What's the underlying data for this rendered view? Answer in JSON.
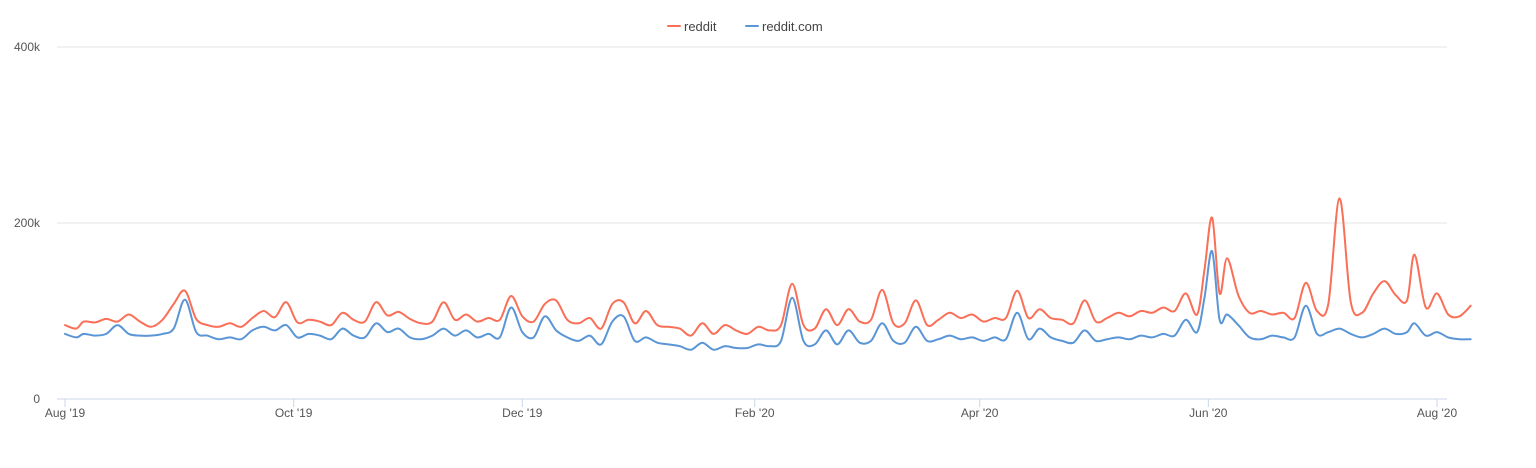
{
  "chart_data": {
    "type": "line",
    "title": "",
    "xlabel": "",
    "ylabel": "",
    "ylim": [
      0,
      400000
    ],
    "y_ticks": [
      {
        "value": 0,
        "label": "0"
      },
      {
        "value": 200000,
        "label": "200k"
      },
      {
        "value": 400000,
        "label": "400k"
      }
    ],
    "x_range": [
      "2019-08-01",
      "2020-08-01"
    ],
    "x_ticks": [
      {
        "date": "2019-08-01",
        "label": "Aug '19"
      },
      {
        "date": "2019-10-01",
        "label": "Oct '19"
      },
      {
        "date": "2019-12-01",
        "label": "Dec '19"
      },
      {
        "date": "2020-02-01",
        "label": "Feb '20"
      },
      {
        "date": "2020-04-01",
        "label": "Apr '20"
      },
      {
        "date": "2020-06-01",
        "label": "Jun '20"
      },
      {
        "date": "2020-08-01",
        "label": "Aug '20"
      }
    ],
    "grid": "horizontal only",
    "legend_position": "top-center",
    "series": [
      {
        "name": "reddit",
        "color": "#fa6f57",
        "points": [
          [
            "2019-08-01",
            84000
          ],
          [
            "2019-08-04",
            80000
          ],
          [
            "2019-08-06",
            88000
          ],
          [
            "2019-08-09",
            87000
          ],
          [
            "2019-08-12",
            91000
          ],
          [
            "2019-08-15",
            88000
          ],
          [
            "2019-08-18",
            96000
          ],
          [
            "2019-08-21",
            88000
          ],
          [
            "2019-08-24",
            82000
          ],
          [
            "2019-08-27",
            90000
          ],
          [
            "2019-08-30",
            108000
          ],
          [
            "2019-09-02",
            123000
          ],
          [
            "2019-09-05",
            91000
          ],
          [
            "2019-09-08",
            84000
          ],
          [
            "2019-09-11",
            82000
          ],
          [
            "2019-09-14",
            86000
          ],
          [
            "2019-09-17",
            82000
          ],
          [
            "2019-09-20",
            92000
          ],
          [
            "2019-09-23",
            100000
          ],
          [
            "2019-09-26",
            93000
          ],
          [
            "2019-09-29",
            110000
          ],
          [
            "2019-10-02",
            87000
          ],
          [
            "2019-10-05",
            90000
          ],
          [
            "2019-10-08",
            88000
          ],
          [
            "2019-10-11",
            84000
          ],
          [
            "2019-10-14",
            98000
          ],
          [
            "2019-10-17",
            90000
          ],
          [
            "2019-10-20",
            88000
          ],
          [
            "2019-10-23",
            110000
          ],
          [
            "2019-10-26",
            95000
          ],
          [
            "2019-10-29",
            99000
          ],
          [
            "2019-11-01",
            91000
          ],
          [
            "2019-11-04",
            86000
          ],
          [
            "2019-11-07",
            88000
          ],
          [
            "2019-11-10",
            110000
          ],
          [
            "2019-11-13",
            90000
          ],
          [
            "2019-11-16",
            96000
          ],
          [
            "2019-11-19",
            88000
          ],
          [
            "2019-11-22",
            92000
          ],
          [
            "2019-11-25",
            90000
          ],
          [
            "2019-11-28",
            117000
          ],
          [
            "2019-12-01",
            94000
          ],
          [
            "2019-12-04",
            88000
          ],
          [
            "2019-12-07",
            108000
          ],
          [
            "2019-12-10",
            112000
          ],
          [
            "2019-12-13",
            90000
          ],
          [
            "2019-12-16",
            86000
          ],
          [
            "2019-12-19",
            92000
          ],
          [
            "2019-12-22",
            80000
          ],
          [
            "2019-12-25",
            108000
          ],
          [
            "2019-12-28",
            110000
          ],
          [
            "2019-12-31",
            86000
          ],
          [
            "2020-01-03",
            100000
          ],
          [
            "2020-01-06",
            84000
          ],
          [
            "2020-01-09",
            82000
          ],
          [
            "2020-01-12",
            80000
          ],
          [
            "2020-01-15",
            72000
          ],
          [
            "2020-01-18",
            86000
          ],
          [
            "2020-01-21",
            74000
          ],
          [
            "2020-01-24",
            84000
          ],
          [
            "2020-01-27",
            78000
          ],
          [
            "2020-01-30",
            74000
          ],
          [
            "2020-02-02",
            82000
          ],
          [
            "2020-02-05",
            78000
          ],
          [
            "2020-02-08",
            84000
          ],
          [
            "2020-02-11",
            131000
          ],
          [
            "2020-02-14",
            84000
          ],
          [
            "2020-02-17",
            80000
          ],
          [
            "2020-02-20",
            102000
          ],
          [
            "2020-02-23",
            84000
          ],
          [
            "2020-02-26",
            102000
          ],
          [
            "2020-02-29",
            88000
          ],
          [
            "2020-03-03",
            90000
          ],
          [
            "2020-03-06",
            124000
          ],
          [
            "2020-03-09",
            86000
          ],
          [
            "2020-03-12",
            86000
          ],
          [
            "2020-03-15",
            112000
          ],
          [
            "2020-03-18",
            84000
          ],
          [
            "2020-03-21",
            90000
          ],
          [
            "2020-03-24",
            98000
          ],
          [
            "2020-03-27",
            92000
          ],
          [
            "2020-03-30",
            96000
          ],
          [
            "2020-04-02",
            88000
          ],
          [
            "2020-04-05",
            92000
          ],
          [
            "2020-04-08",
            92000
          ],
          [
            "2020-04-11",
            123000
          ],
          [
            "2020-04-14",
            92000
          ],
          [
            "2020-04-17",
            102000
          ],
          [
            "2020-04-20",
            92000
          ],
          [
            "2020-04-23",
            90000
          ],
          [
            "2020-04-26",
            86000
          ],
          [
            "2020-04-29",
            112000
          ],
          [
            "2020-05-02",
            88000
          ],
          [
            "2020-05-05",
            92000
          ],
          [
            "2020-05-08",
            98000
          ],
          [
            "2020-05-11",
            94000
          ],
          [
            "2020-05-14",
            100000
          ],
          [
            "2020-05-17",
            98000
          ],
          [
            "2020-05-20",
            104000
          ],
          [
            "2020-05-23",
            100000
          ],
          [
            "2020-05-26",
            120000
          ],
          [
            "2020-05-29",
            96000
          ],
          [
            "2020-05-31",
            148000
          ],
          [
            "2020-06-02",
            206000
          ],
          [
            "2020-06-04",
            120000
          ],
          [
            "2020-06-06",
            160000
          ],
          [
            "2020-06-09",
            118000
          ],
          [
            "2020-06-12",
            98000
          ],
          [
            "2020-06-15",
            100000
          ],
          [
            "2020-06-18",
            96000
          ],
          [
            "2020-06-21",
            98000
          ],
          [
            "2020-06-24",
            92000
          ],
          [
            "2020-06-27",
            132000
          ],
          [
            "2020-06-30",
            100000
          ],
          [
            "2020-07-03",
            108000
          ],
          [
            "2020-07-06",
            228000
          ],
          [
            "2020-07-09",
            110000
          ],
          [
            "2020-07-12",
            98000
          ],
          [
            "2020-07-15",
            120000
          ],
          [
            "2020-07-18",
            134000
          ],
          [
            "2020-07-21",
            118000
          ],
          [
            "2020-07-24",
            112000
          ],
          [
            "2020-07-26",
            164000
          ],
          [
            "2020-07-29",
            104000
          ],
          [
            "2020-08-01",
            120000
          ],
          [
            "2020-08-04",
            96000
          ],
          [
            "2020-08-07",
            94000
          ],
          [
            "2020-08-10",
            106000
          ]
        ]
      },
      {
        "name": "reddit.com",
        "color": "#5a95d6",
        "points": [
          [
            "2019-08-01",
            74000
          ],
          [
            "2019-08-04",
            70000
          ],
          [
            "2019-08-06",
            74000
          ],
          [
            "2019-08-09",
            72000
          ],
          [
            "2019-08-12",
            74000
          ],
          [
            "2019-08-15",
            84000
          ],
          [
            "2019-08-18",
            74000
          ],
          [
            "2019-08-21",
            72000
          ],
          [
            "2019-08-24",
            72000
          ],
          [
            "2019-08-27",
            74000
          ],
          [
            "2019-08-30",
            80000
          ],
          [
            "2019-09-02",
            113000
          ],
          [
            "2019-09-05",
            76000
          ],
          [
            "2019-09-08",
            72000
          ],
          [
            "2019-09-11",
            68000
          ],
          [
            "2019-09-14",
            70000
          ],
          [
            "2019-09-17",
            68000
          ],
          [
            "2019-09-20",
            78000
          ],
          [
            "2019-09-23",
            82000
          ],
          [
            "2019-09-26",
            78000
          ],
          [
            "2019-09-29",
            84000
          ],
          [
            "2019-10-02",
            70000
          ],
          [
            "2019-10-05",
            74000
          ],
          [
            "2019-10-08",
            72000
          ],
          [
            "2019-10-11",
            68000
          ],
          [
            "2019-10-14",
            80000
          ],
          [
            "2019-10-17",
            72000
          ],
          [
            "2019-10-20",
            70000
          ],
          [
            "2019-10-23",
            86000
          ],
          [
            "2019-10-26",
            76000
          ],
          [
            "2019-10-29",
            80000
          ],
          [
            "2019-11-01",
            70000
          ],
          [
            "2019-11-04",
            68000
          ],
          [
            "2019-11-07",
            72000
          ],
          [
            "2019-11-10",
            80000
          ],
          [
            "2019-11-13",
            72000
          ],
          [
            "2019-11-16",
            78000
          ],
          [
            "2019-11-19",
            70000
          ],
          [
            "2019-11-22",
            74000
          ],
          [
            "2019-11-25",
            70000
          ],
          [
            "2019-11-28",
            104000
          ],
          [
            "2019-12-01",
            76000
          ],
          [
            "2019-12-04",
            70000
          ],
          [
            "2019-12-07",
            94000
          ],
          [
            "2019-12-10",
            78000
          ],
          [
            "2019-12-13",
            70000
          ],
          [
            "2019-12-16",
            66000
          ],
          [
            "2019-12-19",
            72000
          ],
          [
            "2019-12-22",
            62000
          ],
          [
            "2019-12-25",
            88000
          ],
          [
            "2019-12-28",
            94000
          ],
          [
            "2019-12-31",
            66000
          ],
          [
            "2020-01-03",
            70000
          ],
          [
            "2020-01-06",
            64000
          ],
          [
            "2020-01-09",
            62000
          ],
          [
            "2020-01-12",
            60000
          ],
          [
            "2020-01-15",
            56000
          ],
          [
            "2020-01-18",
            64000
          ],
          [
            "2020-01-21",
            56000
          ],
          [
            "2020-01-24",
            60000
          ],
          [
            "2020-01-27",
            58000
          ],
          [
            "2020-01-30",
            58000
          ],
          [
            "2020-02-02",
            62000
          ],
          [
            "2020-02-05",
            60000
          ],
          [
            "2020-02-08",
            66000
          ],
          [
            "2020-02-11",
            115000
          ],
          [
            "2020-02-14",
            66000
          ],
          [
            "2020-02-17",
            62000
          ],
          [
            "2020-02-20",
            78000
          ],
          [
            "2020-02-23",
            62000
          ],
          [
            "2020-02-26",
            78000
          ],
          [
            "2020-02-29",
            64000
          ],
          [
            "2020-03-03",
            66000
          ],
          [
            "2020-03-06",
            86000
          ],
          [
            "2020-03-09",
            66000
          ],
          [
            "2020-03-12",
            64000
          ],
          [
            "2020-03-15",
            82000
          ],
          [
            "2020-03-18",
            66000
          ],
          [
            "2020-03-21",
            68000
          ],
          [
            "2020-03-24",
            72000
          ],
          [
            "2020-03-27",
            68000
          ],
          [
            "2020-03-30",
            70000
          ],
          [
            "2020-04-02",
            66000
          ],
          [
            "2020-04-05",
            70000
          ],
          [
            "2020-04-08",
            68000
          ],
          [
            "2020-04-11",
            98000
          ],
          [
            "2020-04-14",
            68000
          ],
          [
            "2020-04-17",
            80000
          ],
          [
            "2020-04-20",
            70000
          ],
          [
            "2020-04-23",
            66000
          ],
          [
            "2020-04-26",
            64000
          ],
          [
            "2020-04-29",
            78000
          ],
          [
            "2020-05-02",
            66000
          ],
          [
            "2020-05-05",
            68000
          ],
          [
            "2020-05-08",
            70000
          ],
          [
            "2020-05-11",
            68000
          ],
          [
            "2020-05-14",
            72000
          ],
          [
            "2020-05-17",
            70000
          ],
          [
            "2020-05-20",
            74000
          ],
          [
            "2020-05-23",
            72000
          ],
          [
            "2020-05-26",
            90000
          ],
          [
            "2020-05-29",
            76000
          ],
          [
            "2020-05-31",
            116000
          ],
          [
            "2020-06-02",
            168000
          ],
          [
            "2020-06-04",
            90000
          ],
          [
            "2020-06-06",
            96000
          ],
          [
            "2020-06-09",
            84000
          ],
          [
            "2020-06-12",
            70000
          ],
          [
            "2020-06-15",
            68000
          ],
          [
            "2020-06-18",
            72000
          ],
          [
            "2020-06-21",
            70000
          ],
          [
            "2020-06-24",
            70000
          ],
          [
            "2020-06-27",
            106000
          ],
          [
            "2020-06-30",
            74000
          ],
          [
            "2020-07-03",
            76000
          ],
          [
            "2020-07-06",
            80000
          ],
          [
            "2020-07-09",
            74000
          ],
          [
            "2020-07-12",
            70000
          ],
          [
            "2020-07-15",
            74000
          ],
          [
            "2020-07-18",
            80000
          ],
          [
            "2020-07-21",
            74000
          ],
          [
            "2020-07-24",
            76000
          ],
          [
            "2020-07-26",
            86000
          ],
          [
            "2020-07-29",
            72000
          ],
          [
            "2020-08-01",
            76000
          ],
          [
            "2020-08-04",
            70000
          ],
          [
            "2020-08-07",
            68000
          ],
          [
            "2020-08-10",
            68000
          ]
        ]
      }
    ]
  }
}
